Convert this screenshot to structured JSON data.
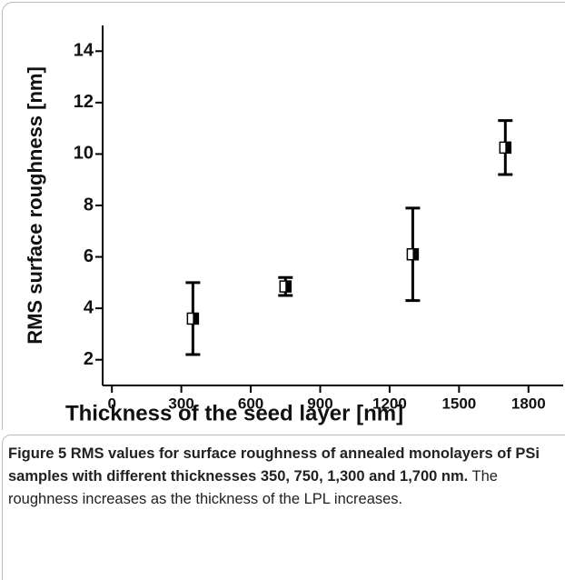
{
  "chart_data": {
    "type": "scatter",
    "xlabel": "Thickness of the seed layer [nm]",
    "ylabel": "RMS surface roughness [nm]",
    "xlim": [
      -40,
      1950
    ],
    "ylim": [
      1,
      15
    ],
    "xticks": [
      0,
      300,
      600,
      900,
      1200,
      1500,
      1800
    ],
    "yticks": [
      2,
      4,
      6,
      8,
      10,
      12,
      14
    ],
    "series": [
      {
        "x": [
          350,
          750,
          1300,
          1700
        ],
        "values": [
          3.6,
          4.85,
          6.1,
          10.25
        ],
        "errors": [
          1.4,
          0.35,
          1.8,
          1.05
        ],
        "color": "#000000"
      }
    ]
  },
  "caption": {
    "label": "Figure 5",
    "title": "RMS values for surface roughness of annealed monolayers of PSi samples with different thicknesses 350, 750, 1,300 and 1,700 nm.",
    "text": "The roughness increases as the thickness of the LPL increases."
  }
}
